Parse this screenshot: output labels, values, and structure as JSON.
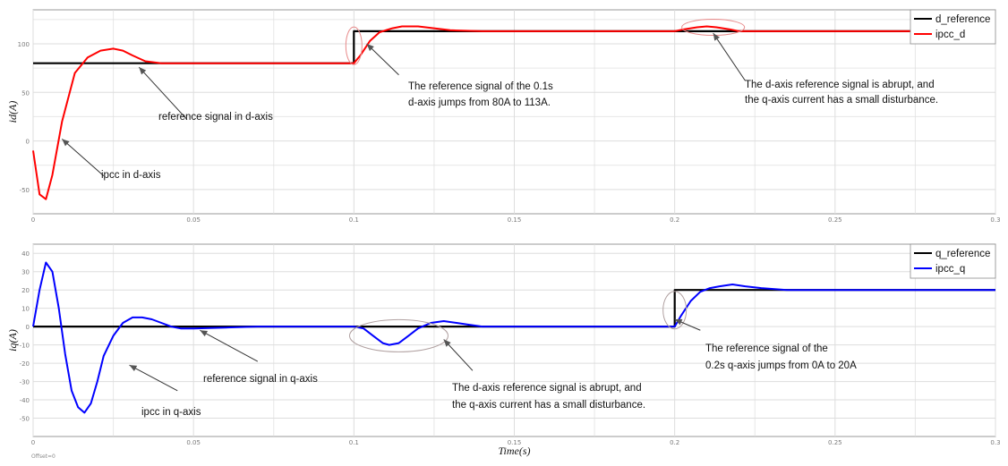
{
  "chart_data": [
    {
      "type": "line",
      "ylabel": "id(A)",
      "xlim": [
        0,
        0.3
      ],
      "ylim": [
        -75,
        135
      ],
      "xticks": [
        0,
        0.05,
        0.1,
        0.15,
        0.2,
        0.25,
        0.3
      ],
      "xtick_labels": [
        "0",
        "0.05",
        "0.1",
        "0.15",
        "0.2",
        "0.25",
        "0.3"
      ],
      "yticks": [
        -50,
        0,
        50,
        100
      ],
      "ytick_labels": [
        "-50",
        "0",
        "50",
        "100"
      ],
      "legend_position": "top-right",
      "series": [
        {
          "name": "d_reference",
          "color": "#000000",
          "x": [
            0,
            0.1,
            0.1,
            0.3
          ],
          "y": [
            80,
            80,
            113,
            113
          ]
        },
        {
          "name": "ipcc_d",
          "color": "#ff0000",
          "x": [
            0,
            0.002,
            0.004,
            0.006,
            0.009,
            0.013,
            0.017,
            0.021,
            0.025,
            0.028,
            0.031,
            0.035,
            0.04,
            0.045,
            0.05,
            0.06,
            0.07,
            0.08,
            0.09,
            0.1,
            0.102,
            0.105,
            0.108,
            0.112,
            0.115,
            0.12,
            0.125,
            0.13,
            0.14,
            0.15,
            0.2,
            0.203,
            0.207,
            0.21,
            0.213,
            0.217,
            0.22,
            0.3
          ],
          "y": [
            -10,
            -55,
            -60,
            -35,
            20,
            70,
            86,
            93,
            95,
            93,
            88,
            82,
            80,
            80,
            80,
            80,
            80,
            80,
            80,
            80,
            88,
            103,
            112,
            116,
            118,
            118,
            116,
            114,
            113,
            113,
            113,
            115,
            117,
            118,
            117,
            115,
            113,
            113
          ]
        }
      ],
      "annotations": [
        {
          "text": "reference signal in d-axis",
          "x": 0.033,
          "y": 20
        },
        {
          "text": "ipcc in d-axis",
          "x": 0.017,
          "y": -40
        },
        {
          "text": "The reference signal of the 0.1s",
          "x": 0.112,
          "y": 55
        },
        {
          "text": "d-axis jumps from 80A to 113A.",
          "x": 0.112,
          "y": 28
        },
        {
          "text": "The d-axis reference signal is abrupt, and",
          "x": 0.212,
          "y": 56
        },
        {
          "text": "the q-axis current has a small disturbance.",
          "x": 0.212,
          "y": 36
        }
      ]
    },
    {
      "type": "line",
      "ylabel": "iq(A)",
      "xlabel": "Time(s)",
      "xlim": [
        0,
        0.3
      ],
      "ylim": [
        -60,
        45
      ],
      "xticks": [
        0,
        0.05,
        0.1,
        0.15,
        0.2,
        0.25,
        0.3
      ],
      "xtick_labels": [
        "0",
        "0.05",
        "0.1",
        "0.15",
        "0.2",
        "0.25",
        "0.3"
      ],
      "yticks": [
        -50,
        -40,
        -30,
        -20,
        -10,
        0,
        10,
        20,
        30,
        40
      ],
      "ytick_labels": [
        "-50",
        "-40",
        "-30",
        "-20",
        "-10",
        "0",
        "10",
        "20",
        "30",
        "40"
      ],
      "legend_position": "top-right",
      "series": [
        {
          "name": "q_reference",
          "color": "#000000",
          "x": [
            0,
            0.2,
            0.2,
            0.3
          ],
          "y": [
            0,
            0,
            20,
            20
          ]
        },
        {
          "name": "ipcc_q",
          "color": "#0000ff",
          "x": [
            0,
            0.002,
            0.004,
            0.006,
            0.008,
            0.01,
            0.012,
            0.014,
            0.016,
            0.018,
            0.02,
            0.022,
            0.025,
            0.028,
            0.031,
            0.034,
            0.037,
            0.04,
            0.043,
            0.046,
            0.05,
            0.06,
            0.07,
            0.08,
            0.09,
            0.1,
            0.103,
            0.106,
            0.109,
            0.111,
            0.114,
            0.117,
            0.12,
            0.124,
            0.128,
            0.132,
            0.136,
            0.14,
            0.15,
            0.2,
            0.202,
            0.205,
            0.208,
            0.211,
            0.214,
            0.218,
            0.222,
            0.227,
            0.235,
            0.3
          ],
          "y": [
            0,
            20,
            35,
            30,
            10,
            -15,
            -35,
            -44,
            -47,
            -42,
            -30,
            -16,
            -5,
            2,
            5,
            5,
            4,
            2,
            0,
            -1,
            -1,
            -0.5,
            0,
            0,
            0,
            0,
            -1,
            -5,
            -9,
            -10,
            -9,
            -5,
            -1,
            2,
            3,
            2,
            1,
            0,
            0,
            0,
            6,
            14,
            19,
            21,
            22,
            23,
            22,
            21,
            20,
            20
          ]
        }
      ],
      "annotations": [
        {
          "text": "reference signal in q-axis",
          "x": 0.065,
          "y": -23
        },
        {
          "text": "ipcc in q-axis",
          "x": 0.04,
          "y": -38
        },
        {
          "text": "The d-axis reference signal is abrupt, and",
          "x": 0.16,
          "y": -28
        },
        {
          "text": "the q-axis current has a small disturbance.",
          "x": 0.16,
          "y": -35
        },
        {
          "text": "The reference signal of the",
          "x": 0.205,
          "y": -8
        },
        {
          "text": "0.2s q-axis jumps from 0A to 20A",
          "x": 0.205,
          "y": -17
        }
      ]
    }
  ],
  "corner_label": "Offset=0"
}
